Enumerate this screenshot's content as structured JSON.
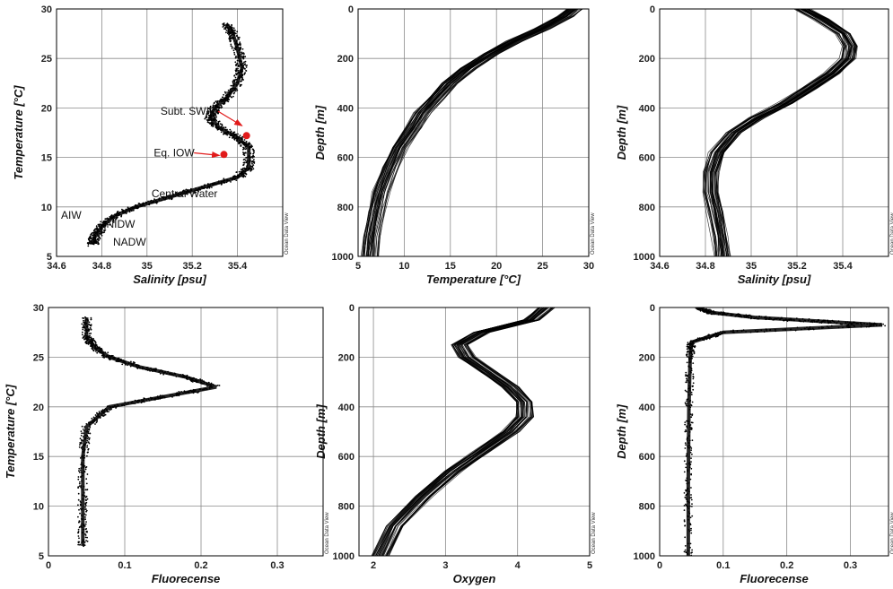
{
  "watermark": "Ocean Data View",
  "chart_data": [
    {
      "id": "ts",
      "type": "scatter",
      "xlabel": "Salinity [psu]",
      "ylabel": "Temperature [°C]",
      "xlim": [
        34.6,
        35.6
      ],
      "ylim": [
        5,
        30
      ],
      "y_inverted": false,
      "xticks": [
        34.6,
        34.8,
        35,
        35.2,
        35.4
      ],
      "xtick_labels": [
        "34.6",
        "34.8",
        "35",
        "35.2",
        "35.4"
      ],
      "yticks": [
        5,
        10,
        15,
        20,
        25,
        30
      ],
      "ytick_labels": [
        "5",
        "10",
        "15",
        "20",
        "25",
        "30"
      ],
      "grid": true,
      "series": [
        {
          "x": [
            35.35,
            35.38,
            35.4,
            35.42,
            35.4,
            35.35,
            35.3,
            35.28,
            35.32,
            35.4,
            35.45,
            35.45,
            35.4,
            35.25,
            35.1,
            34.95,
            34.85,
            34.8,
            34.77,
            34.76
          ],
          "y": [
            28.5,
            27.5,
            26.0,
            24.0,
            22.5,
            21.0,
            20.0,
            19.0,
            18.0,
            17.0,
            16.0,
            14.0,
            13.0,
            12.0,
            11.0,
            10.0,
            9.0,
            8.0,
            7.0,
            6.2
          ]
        }
      ],
      "markers": [
        {
          "x": 35.44,
          "y": 17.2,
          "color": "#e11b1b"
        },
        {
          "x": 35.34,
          "y": 15.3,
          "color": "#e11b1b"
        }
      ],
      "annotations": [
        {
          "text": "Subt. SWIO",
          "x": 35.06,
          "y": 19.3,
          "arrow_to": [
            35.42,
            18.2
          ]
        },
        {
          "text": "Eq. IOW",
          "x": 35.03,
          "y": 15.1,
          "arrow_to": [
            35.32,
            15.2
          ]
        },
        {
          "text": "Central Water",
          "x": 35.02,
          "y": 11.0
        },
        {
          "text": "AIW",
          "x": 34.62,
          "y": 8.8
        },
        {
          "text": "NIDW",
          "x": 34.82,
          "y": 7.9
        },
        {
          "text": "NADW",
          "x": 34.85,
          "y": 6.1
        }
      ]
    },
    {
      "id": "temp-depth",
      "type": "line",
      "xlabel": "Temperature [°C]",
      "ylabel": "Depth [m]",
      "xlim": [
        5,
        30
      ],
      "ylim": [
        0,
        1000
      ],
      "y_inverted": true,
      "xticks": [
        5,
        10,
        15,
        20,
        25,
        30
      ],
      "xtick_labels": [
        "5",
        "10",
        "15",
        "20",
        "25",
        "30"
      ],
      "yticks": [
        0,
        200,
        400,
        600,
        800,
        1000
      ],
      "ytick_labels": [
        "0",
        "200",
        "400",
        "600",
        "800",
        "1000"
      ],
      "grid": true,
      "series": [
        {
          "x": [
            28.5,
            27.5,
            25.0,
            22.0,
            19.5,
            17.0,
            15.0,
            13.5,
            12.0,
            11.0,
            9.5,
            8.5,
            7.5,
            7.0,
            6.5,
            6.3
          ],
          "y": [
            0,
            30,
            80,
            130,
            180,
            240,
            300,
            360,
            420,
            480,
            560,
            640,
            740,
            820,
            920,
            1000
          ]
        }
      ]
    },
    {
      "id": "sal-depth",
      "type": "line",
      "xlabel": "Salinity [psu]",
      "ylabel": "Depth [m]",
      "xlim": [
        34.6,
        35.6
      ],
      "ylim": [
        0,
        1000
      ],
      "y_inverted": true,
      "xticks": [
        34.6,
        34.8,
        35,
        35.2,
        35.4
      ],
      "xtick_labels": [
        "34.6",
        "34.8",
        "35",
        "35.2",
        "35.4"
      ],
      "yticks": [
        0,
        200,
        400,
        600,
        800,
        1000
      ],
      "ytick_labels": [
        "0",
        "200",
        "400",
        "600",
        "800",
        "1000"
      ],
      "grid": true,
      "series": [
        {
          "x": [
            35.22,
            35.3,
            35.4,
            35.43,
            35.42,
            35.35,
            35.25,
            35.15,
            35.02,
            34.92,
            34.85,
            34.82,
            34.82,
            34.84,
            34.86,
            34.87
          ],
          "y": [
            0,
            40,
            100,
            150,
            200,
            260,
            320,
            380,
            440,
            500,
            580,
            660,
            740,
            820,
            920,
            1000
          ]
        }
      ]
    },
    {
      "id": "fluor-temp",
      "type": "scatter",
      "xlabel": "Fluorecense",
      "ylabel": "Temperature [°C]",
      "xlim": [
        0,
        0.36
      ],
      "ylim": [
        5,
        30
      ],
      "y_inverted": false,
      "xticks": [
        0,
        0.1,
        0.2,
        0.3
      ],
      "xtick_labels": [
        "0",
        "0.1",
        "0.2",
        "0.3"
      ],
      "yticks": [
        5,
        10,
        15,
        20,
        25,
        30
      ],
      "ytick_labels": [
        "5",
        "10",
        "15",
        "20",
        "25",
        "30"
      ],
      "grid": true,
      "series": [
        {
          "x": [
            0.05,
            0.05,
            0.06,
            0.08,
            0.12,
            0.18,
            0.22,
            0.15,
            0.08,
            0.05,
            0.045,
            0.045,
            0.045
          ],
          "y": [
            29,
            27,
            26,
            25,
            24,
            23,
            22,
            21,
            20,
            18,
            15,
            10,
            6
          ]
        }
      ]
    },
    {
      "id": "oxy-depth",
      "type": "line",
      "xlabel": "Oxygen",
      "ylabel": "Depth [m]",
      "xlim": [
        1.8,
        5
      ],
      "ylim": [
        0,
        1000
      ],
      "y_inverted": true,
      "xticks": [
        2,
        3,
        4,
        5
      ],
      "xtick_labels": [
        "2",
        "3",
        "4",
        "5"
      ],
      "yticks": [
        0,
        200,
        400,
        600,
        800,
        1000
      ],
      "ytick_labels": [
        "0",
        "200",
        "400",
        "600",
        "800",
        "1000"
      ],
      "grid": true,
      "series": [
        {
          "x": [
            4.4,
            4.2,
            3.5,
            3.2,
            3.3,
            3.6,
            3.9,
            4.1,
            4.1,
            3.9,
            3.5,
            3.1,
            2.7,
            2.3,
            2.1
          ],
          "y": [
            0,
            50,
            100,
            150,
            200,
            260,
            320,
            380,
            440,
            500,
            580,
            660,
            760,
            880,
            1000
          ]
        }
      ]
    },
    {
      "id": "fluor-depth",
      "type": "scatter",
      "xlabel": "Fluorecense",
      "ylabel": "Depth [m]",
      "xlim": [
        0,
        0.36
      ],
      "ylim": [
        0,
        1000
      ],
      "y_inverted": true,
      "xticks": [
        0,
        0.1,
        0.2,
        0.3
      ],
      "xtick_labels": [
        "0",
        "0.1",
        "0.2",
        "0.3"
      ],
      "yticks": [
        0,
        200,
        400,
        600,
        800,
        1000
      ],
      "ytick_labels": [
        "0",
        "200",
        "400",
        "600",
        "800",
        "1000"
      ],
      "grid": true,
      "series": [
        {
          "x": [
            0.06,
            0.08,
            0.15,
            0.25,
            0.35,
            0.1,
            0.05,
            0.048,
            0.046,
            0.045,
            0.045
          ],
          "y": [
            0,
            20,
            40,
            55,
            70,
            100,
            140,
            200,
            400,
            700,
            1000
          ]
        }
      ]
    }
  ]
}
